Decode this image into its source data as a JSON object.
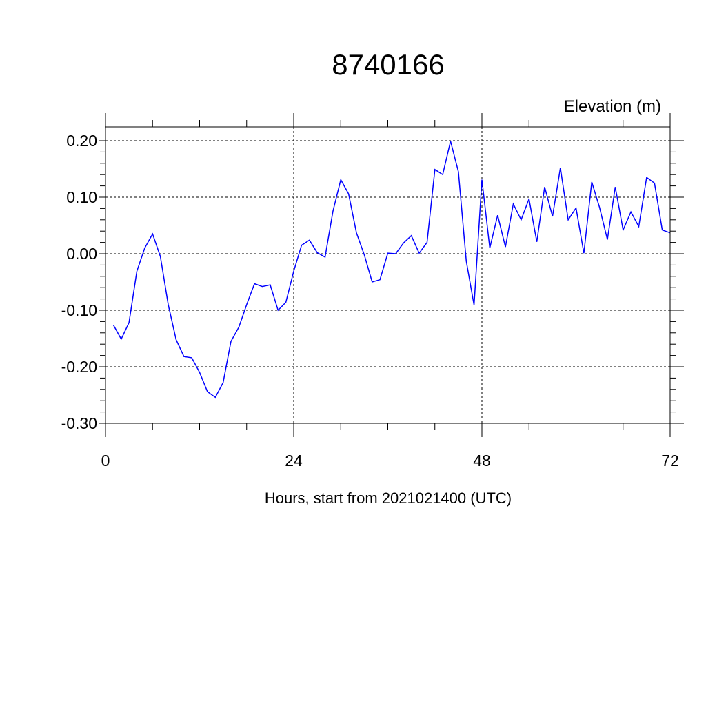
{
  "chart_data": {
    "type": "line",
    "title": "8740166",
    "subtitle": "Elevation (m)",
    "xlabel": "Hours, start from 2021021400 (UTC)",
    "ylabel": "",
    "xlim": [
      0,
      72
    ],
    "ylim": [
      -0.3,
      0.2
    ],
    "x_ticks": [
      0,
      24,
      48,
      72
    ],
    "x_tick_labels": [
      "0",
      "24",
      "48",
      "72"
    ],
    "y_ticks": [
      0.2,
      0.1,
      0.0,
      -0.1,
      -0.2,
      -0.3
    ],
    "y_tick_labels": [
      "0.20",
      "0.10",
      "0.00",
      "-0.10",
      "-0.20",
      "-0.30"
    ],
    "grid": true,
    "series": [
      {
        "color": "#0000ff",
        "x": [
          1,
          2,
          3,
          4,
          5,
          6,
          7,
          8,
          9,
          10,
          11,
          12,
          13,
          14,
          15,
          16,
          17,
          18,
          19,
          20,
          21,
          22,
          23,
          24,
          25,
          26,
          27,
          28,
          29,
          30,
          31,
          32,
          33,
          34,
          35,
          36,
          37,
          38,
          39,
          40,
          41,
          42,
          43,
          44,
          45,
          46,
          47,
          48,
          49,
          50,
          51,
          52,
          53,
          54,
          55,
          56,
          57,
          58,
          59,
          60,
          61,
          62,
          63,
          64,
          65,
          66,
          67,
          68,
          69,
          70,
          71,
          72
        ],
        "y": [
          -0.126,
          -0.151,
          -0.122,
          -0.031,
          0.01,
          0.035,
          -0.005,
          -0.09,
          -0.152,
          -0.182,
          -0.184,
          -0.21,
          -0.244,
          -0.254,
          -0.228,
          -0.155,
          -0.13,
          -0.09,
          -0.053,
          -0.058,
          -0.055,
          -0.1,
          -0.086,
          -0.031,
          0.015,
          0.024,
          0.002,
          -0.006,
          0.075,
          0.131,
          0.106,
          0.037,
          -0.002,
          -0.05,
          -0.046,
          0.001,
          0.0,
          0.019,
          0.032,
          0.001,
          0.02,
          0.149,
          0.14,
          0.199,
          0.145,
          -0.013,
          -0.091,
          0.131,
          0.01,
          0.068,
          0.012,
          0.088,
          0.06,
          0.097,
          0.021,
          0.118,
          0.066,
          0.152,
          0.06,
          0.081,
          0.001,
          0.127,
          0.082,
          0.025,
          0.118,
          0.042,
          0.074,
          0.048,
          0.135,
          0.125,
          0.042,
          0.037
        ]
      }
    ]
  }
}
